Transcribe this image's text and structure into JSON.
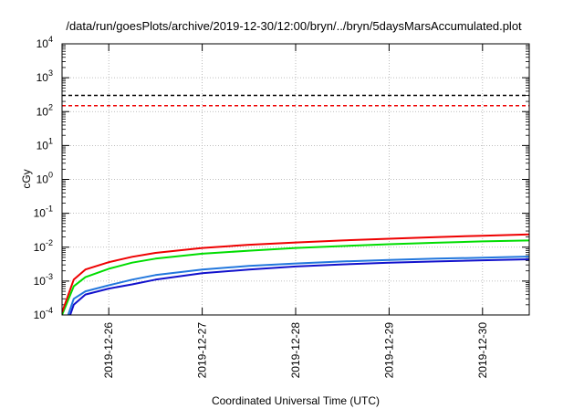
{
  "chart_data": {
    "type": "line",
    "title": "/data/run/goesPlots/archive/2019-12-30/12:00/bryn/../bryn/5daysMarsAccumulated.plot",
    "xlabel": "Coordinated Universal Time (UTC)",
    "ylabel": "cGy",
    "y_scale": "log",
    "ylim": [
      0.0001,
      10000
    ],
    "y_ticks": [
      {
        "base": "10",
        "exp": "-4",
        "value": 0.0001
      },
      {
        "base": "10",
        "exp": "-3",
        "value": 0.001
      },
      {
        "base": "10",
        "exp": "-2",
        "value": 0.01
      },
      {
        "base": "10",
        "exp": "-1",
        "value": 0.1
      },
      {
        "base": "10",
        "exp": "0",
        "value": 1
      },
      {
        "base": "10",
        "exp": "1",
        "value": 10
      },
      {
        "base": "10",
        "exp": "2",
        "value": 100
      },
      {
        "base": "10",
        "exp": "3",
        "value": 1000
      },
      {
        "base": "10",
        "exp": "4",
        "value": 10000
      }
    ],
    "xlim": [
      "2019-12-25T12:00",
      "2019-12-30T12:00"
    ],
    "x_ticks": [
      "2019-12-26",
      "2019-12-27",
      "2019-12-28",
      "2019-12-29",
      "2019-12-30"
    ],
    "grid": true,
    "reference_lines": [
      {
        "value": 300,
        "color": "#000000",
        "style": "dashed"
      },
      {
        "value": 150,
        "color": "#ee0000",
        "style": "dashed"
      }
    ],
    "series": [
      {
        "color": "#ee0000",
        "x": [
          "2019-12-25T12:00",
          "2019-12-25T15:00",
          "2019-12-25T18:00",
          "2019-12-26T00:00",
          "2019-12-26T06:00",
          "2019-12-26T12:00",
          "2019-12-27T00:00",
          "2019-12-27T12:00",
          "2019-12-28T00:00",
          "2019-12-28T12:00",
          "2019-12-29T00:00",
          "2019-12-29T12:00",
          "2019-12-30T00:00",
          "2019-12-30T12:00"
        ],
        "y": [
          0.00012,
          0.0011,
          0.0022,
          0.0036,
          0.0052,
          0.0068,
          0.0095,
          0.0118,
          0.0138,
          0.0158,
          0.0178,
          0.0198,
          0.0218,
          0.0238
        ]
      },
      {
        "color": "#00dd00",
        "x": [
          "2019-12-25T12:00",
          "2019-12-25T15:00",
          "2019-12-25T18:00",
          "2019-12-26T00:00",
          "2019-12-26T06:00",
          "2019-12-26T12:00",
          "2019-12-27T00:00",
          "2019-12-27T12:00",
          "2019-12-28T00:00",
          "2019-12-28T12:00",
          "2019-12-29T00:00",
          "2019-12-29T12:00",
          "2019-12-30T00:00",
          "2019-12-30T12:00"
        ],
        "y": [
          0.0001,
          0.0007,
          0.0013,
          0.0023,
          0.0035,
          0.0046,
          0.0064,
          0.0079,
          0.0095,
          0.0108,
          0.0122,
          0.0135,
          0.0148,
          0.0158
        ]
      },
      {
        "color": "#2277dd",
        "x": [
          "2019-12-25T12:00",
          "2019-12-25T15:00",
          "2019-12-25T18:00",
          "2019-12-26T00:00",
          "2019-12-26T06:00",
          "2019-12-26T12:00",
          "2019-12-27T00:00",
          "2019-12-27T12:00",
          "2019-12-28T00:00",
          "2019-12-28T12:00",
          "2019-12-29T00:00",
          "2019-12-29T12:00",
          "2019-12-30T00:00",
          "2019-12-30T12:00"
        ],
        "y": [
          3e-05,
          0.0003,
          0.0005,
          0.00075,
          0.0011,
          0.0015,
          0.0022,
          0.0028,
          0.0033,
          0.0038,
          0.0042,
          0.0046,
          0.0049,
          0.0053
        ]
      },
      {
        "color": "#1111cc",
        "x": [
          "2019-12-25T12:00",
          "2019-12-25T15:00",
          "2019-12-25T18:00",
          "2019-12-26T00:00",
          "2019-12-26T06:00",
          "2019-12-26T12:00",
          "2019-12-27T00:00",
          "2019-12-27T12:00",
          "2019-12-28T00:00",
          "2019-12-28T12:00",
          "2019-12-29T00:00",
          "2019-12-29T12:00",
          "2019-12-30T00:00",
          "2019-12-30T12:00"
        ],
        "y": [
          2e-05,
          0.0002,
          0.0004,
          0.0006,
          0.0008,
          0.0011,
          0.0017,
          0.0022,
          0.0027,
          0.0031,
          0.0035,
          0.0038,
          0.0041,
          0.0044
        ]
      }
    ]
  }
}
